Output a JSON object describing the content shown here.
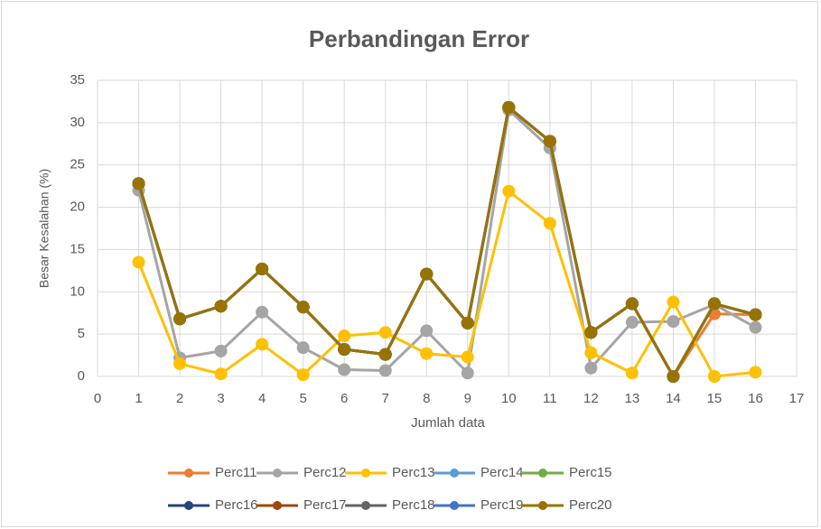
{
  "chart_data": {
    "type": "line",
    "title": "Perbandingan Error",
    "xlabel": "Jumlah data",
    "ylabel": "Besar Kesalahan (%)",
    "x": [
      1,
      2,
      3,
      4,
      5,
      6,
      7,
      8,
      9,
      10,
      11,
      12,
      13,
      14,
      15,
      16
    ],
    "xlim": [
      0,
      17
    ],
    "xticks": [
      0,
      1,
      2,
      3,
      4,
      5,
      6,
      7,
      8,
      9,
      10,
      11,
      12,
      13,
      14,
      15,
      16,
      17
    ],
    "ylim": [
      0,
      35
    ],
    "yticks": [
      0,
      5,
      10,
      15,
      20,
      25,
      30,
      35
    ],
    "grid": true,
    "legend": "bottom",
    "series": [
      {
        "name": "Perc11",
        "color": "#ed7d31",
        "values": [
          22.8,
          6.8,
          8.3,
          12.7,
          8.2,
          3.2,
          2.6,
          12.1,
          6.3,
          31.8,
          27.8,
          5.2,
          8.6,
          0,
          7.4,
          7.3
        ]
      },
      {
        "name": "Perc12",
        "color": "#a5a5a5",
        "values": [
          22,
          2.2,
          3,
          7.6,
          3.4,
          0.8,
          0.7,
          5.4,
          0.4,
          31.5,
          27,
          1,
          6.4,
          6.5,
          8.5,
          5.8
        ]
      },
      {
        "name": "Perc13",
        "color": "#ffc000",
        "values": [
          13.5,
          1.5,
          0.3,
          3.8,
          0.2,
          4.8,
          5.2,
          2.7,
          2.3,
          21.9,
          18.1,
          2.8,
          0.4,
          8.8,
          0,
          0.5
        ]
      },
      {
        "name": "Perc14",
        "color": "#5b9bd5",
        "values": [
          22.8,
          6.8,
          8.3,
          12.7,
          8.2,
          3.2,
          2.6,
          12.1,
          6.3,
          31.8,
          27.8,
          5.2,
          8.6,
          0,
          8.6,
          7.3
        ]
      },
      {
        "name": "Perc15",
        "color": "#70ad47",
        "values": [
          22.8,
          6.8,
          8.3,
          12.7,
          8.2,
          3.2,
          2.6,
          12.1,
          6.3,
          31.8,
          27.8,
          5.2,
          8.6,
          0,
          8.6,
          7.3
        ]
      },
      {
        "name": "Perc16",
        "color": "#264478",
        "values": [
          22.8,
          6.8,
          8.3,
          12.7,
          8.2,
          3.2,
          2.6,
          12.1,
          6.3,
          31.8,
          27.8,
          5.2,
          8.6,
          0,
          8.6,
          7.3
        ]
      },
      {
        "name": "Perc17",
        "color": "#9e480e",
        "values": [
          22.8,
          6.8,
          8.3,
          12.7,
          8.2,
          3.2,
          2.6,
          12.1,
          6.3,
          31.8,
          27.8,
          5.2,
          8.6,
          0,
          8.6,
          7.3
        ]
      },
      {
        "name": "Perc18",
        "color": "#636363",
        "values": [
          22.8,
          6.8,
          8.3,
          12.7,
          8.2,
          3.2,
          2.6,
          12.1,
          6.3,
          31.8,
          27.8,
          5.2,
          8.6,
          0,
          8.6,
          7.3
        ]
      },
      {
        "name": "Perc19",
        "color": "#4472c4",
        "values": [
          22.8,
          6.8,
          8.3,
          12.7,
          8.2,
          3.2,
          2.6,
          12.1,
          6.3,
          31.8,
          27.8,
          5.2,
          8.6,
          0,
          8.6,
          7.3
        ]
      },
      {
        "name": "Perc20",
        "color": "#997300",
        "values": [
          22.8,
          6.8,
          8.3,
          12.7,
          8.2,
          3.2,
          2.6,
          12.1,
          6.3,
          31.8,
          27.8,
          5.2,
          8.6,
          0,
          8.6,
          7.3
        ]
      }
    ]
  }
}
